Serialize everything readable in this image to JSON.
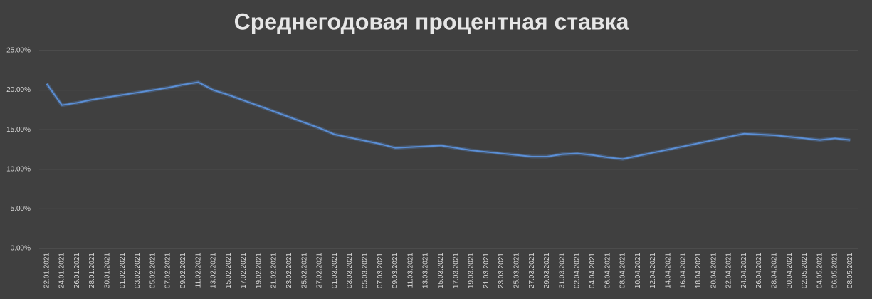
{
  "chart_data": {
    "type": "line",
    "title": "Среднегодовая процентная ставка",
    "categories": [
      "22.01.2021",
      "24.01.2021",
      "26.01.2021",
      "28.01.2021",
      "30.01.2021",
      "01.02.2021",
      "03.02.2021",
      "05.02.2021",
      "07.02.2021",
      "09.02.2021",
      "11.02.2021",
      "13.02.2021",
      "15.02.2021",
      "17.02.2021",
      "19.02.2021",
      "21.02.2021",
      "23.02.2021",
      "25.02.2021",
      "27.02.2021",
      "01.03.2021",
      "03.03.2021",
      "05.03.2021",
      "07.03.2021",
      "09.03.2021",
      "11.03.2021",
      "13.03.2021",
      "15.03.2021",
      "17.03.2021",
      "19.03.2021",
      "21.03.2021",
      "23.03.2021",
      "25.03.2021",
      "27.03.2021",
      "29.03.2021",
      "31.03.2021",
      "02.04.2021",
      "04.04.2021",
      "06.04.2021",
      "08.04.2021",
      "10.04.2021",
      "12.04.2021",
      "14.04.2021",
      "16.04.2021",
      "18.04.2021",
      "20.04.2021",
      "22.04.2021",
      "24.04.2021",
      "26.04.2021",
      "28.04.2021",
      "30.04.2021",
      "02.05.2021",
      "04.05.2021",
      "06.05.2021",
      "08.05.2021"
    ],
    "values": [
      20.8,
      18.1,
      18.4,
      18.8,
      19.1,
      19.4,
      19.7,
      20.0,
      20.3,
      20.7,
      21.0,
      20.0,
      19.4,
      18.7,
      18.0,
      17.3,
      16.6,
      15.9,
      15.2,
      14.4,
      14.0,
      13.6,
      13.2,
      12.7,
      12.8,
      12.9,
      13.0,
      12.7,
      12.4,
      12.2,
      12.0,
      11.8,
      11.6,
      11.6,
      11.9,
      12.0,
      11.8,
      11.5,
      11.3,
      11.7,
      12.1,
      12.5,
      12.9,
      13.3,
      13.7,
      14.1,
      14.5,
      14.4,
      14.3,
      14.1,
      13.9,
      13.7,
      13.9,
      13.7
    ],
    "color": "#5b8fd6",
    "ylim": [
      0,
      25
    ],
    "yticks": [
      {
        "value": 0,
        "label": "0.00%"
      },
      {
        "value": 5,
        "label": "5.00%"
      },
      {
        "value": 10,
        "label": "10.00%"
      },
      {
        "value": 15,
        "label": "15.00%"
      },
      {
        "value": 20,
        "label": "20.00%"
      },
      {
        "value": 25,
        "label": "25.00%"
      }
    ],
    "grid": true
  }
}
